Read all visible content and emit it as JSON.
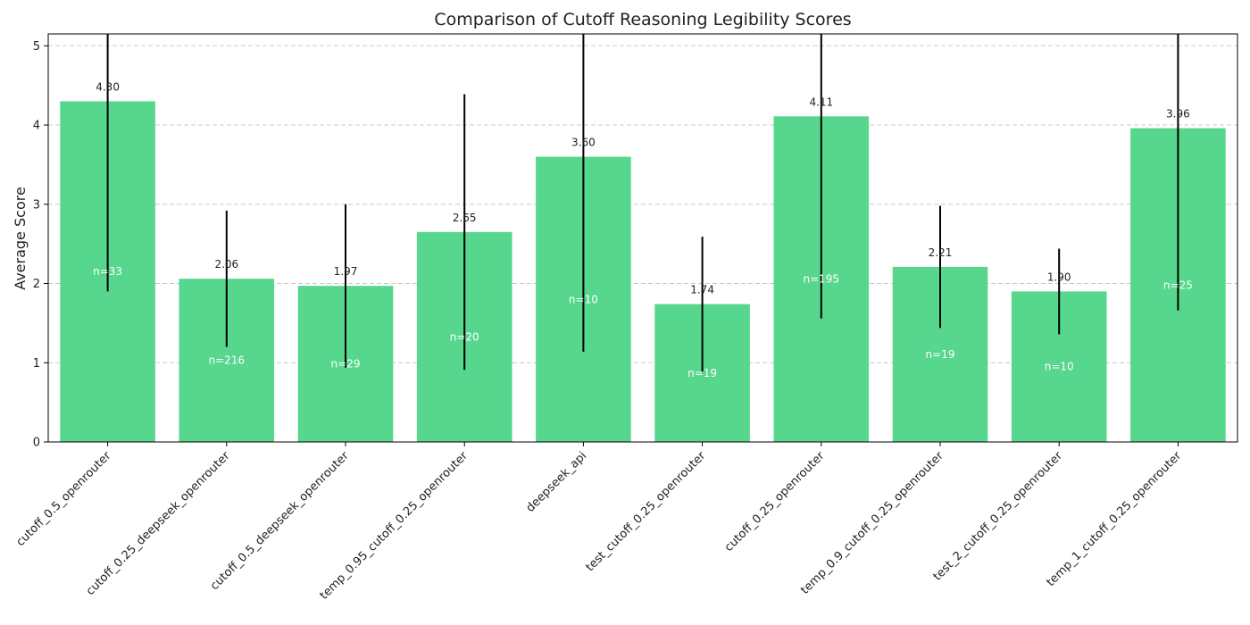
{
  "chart_data": {
    "type": "bar",
    "title": "Comparison of Cutoff Reasoning Legibility Scores",
    "xlabel": "",
    "ylabel": "Average Score",
    "ylim": [
      0,
      5.15
    ],
    "yticks": [
      0,
      1,
      2,
      3,
      4,
      5
    ],
    "grid": "y-dashed",
    "bar_color": "#57d68d",
    "categories": [
      "cutoff_0.5_openrouter",
      "cutoff_0.25_deepseek_openrouter",
      "cutoff_0.5_deepseek_openrouter",
      "temp_0.95_cutoff_0.25_openrouter",
      "deepseek_api",
      "test_cutoff_0.25_openrouter",
      "cutoff_0.25_openrouter",
      "temp_0.9_cutoff_0.25_openrouter",
      "test_2_cutoff_0.25_openrouter",
      "temp_1_cutoff_0.25_openrouter"
    ],
    "values": [
      4.3,
      2.06,
      1.97,
      2.65,
      3.6,
      1.74,
      4.11,
      2.21,
      1.9,
      3.96
    ],
    "value_labels": [
      "4.30",
      "2.06",
      "1.97",
      "2.65",
      "3.60",
      "1.74",
      "4.11",
      "2.21",
      "1.90",
      "3.96"
    ],
    "errors": [
      2.4,
      0.86,
      1.03,
      1.74,
      2.46,
      0.85,
      2.55,
      0.77,
      0.54,
      2.3
    ],
    "counts": [
      "n=33",
      "n=216",
      "n=29",
      "n=20",
      "n=10",
      "n=19",
      "n=195",
      "n=19",
      "n=10",
      "n=25"
    ]
  }
}
